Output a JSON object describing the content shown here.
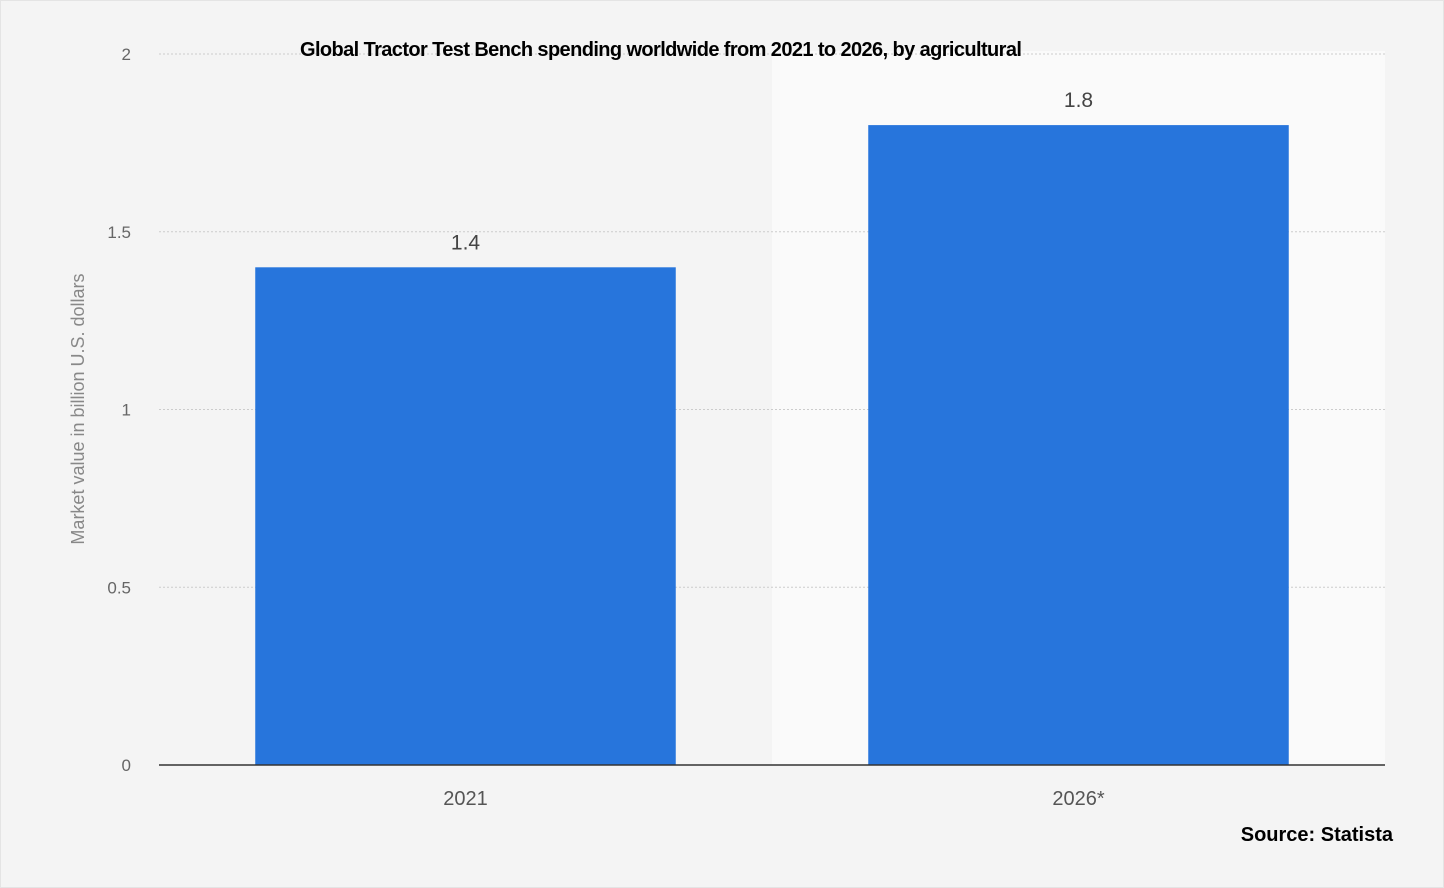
{
  "chart_data": {
    "type": "bar",
    "title": "Global Tractor Test Bench spending worldwide from 2021 to 2026, by agricultural",
    "xlabel": "",
    "ylabel": "Market value in billion U.S. dollars",
    "categories": [
      "2021",
      "2026*"
    ],
    "values": [
      1.4,
      1.8
    ],
    "data_labels": [
      "1.4",
      "1.8"
    ],
    "ylim": [
      0,
      2
    ],
    "yticks": [
      0,
      0.5,
      1,
      1.5,
      2
    ],
    "ytick_labels": [
      "0",
      "0.5",
      "1",
      "1.5",
      "2"
    ],
    "grid": true,
    "source": "Source: Statista",
    "colors": {
      "bar": "#2775dc",
      "background": "#f4f4f4",
      "forecast_background": "#fafafa"
    }
  }
}
